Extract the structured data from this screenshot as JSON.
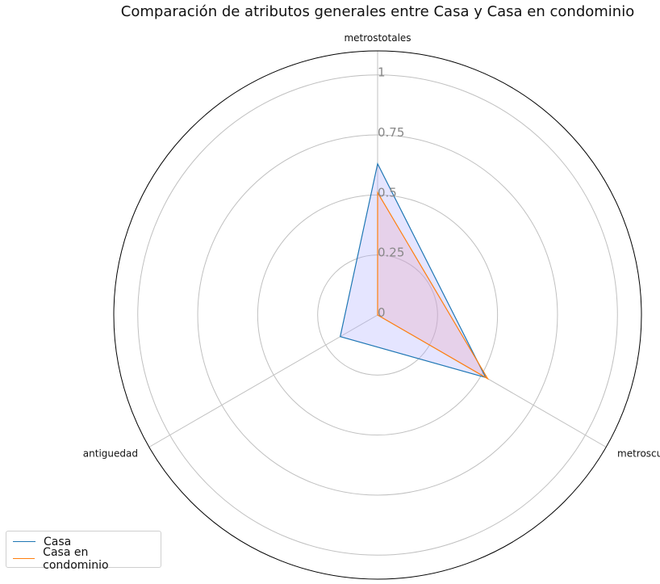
{
  "chart_data": {
    "type": "radar",
    "title": "Comparación de atributos generales entre Casa y Casa en condominio",
    "axes": [
      "metrostotales",
      "metroscubiertos",
      "antiguedad"
    ],
    "radial_ticks": [
      0,
      0.25,
      0.5,
      0.75,
      1
    ],
    "radial_tick_labels": [
      "0",
      "0.25",
      "0.5",
      "0.75",
      "1"
    ],
    "rlim": [
      0,
      1.1
    ],
    "legend_position": "lower-left",
    "series": [
      {
        "name": "Casa",
        "values": [
          0.63,
          0.52,
          0.18
        ],
        "color": "#1f77b4",
        "fill": "#aaaaff"
      },
      {
        "name": "Casa en condominio",
        "values": [
          0.51,
          0.53,
          0.0
        ],
        "color": "#ff7f0e",
        "fill": "#e7a3bb"
      }
    ]
  }
}
